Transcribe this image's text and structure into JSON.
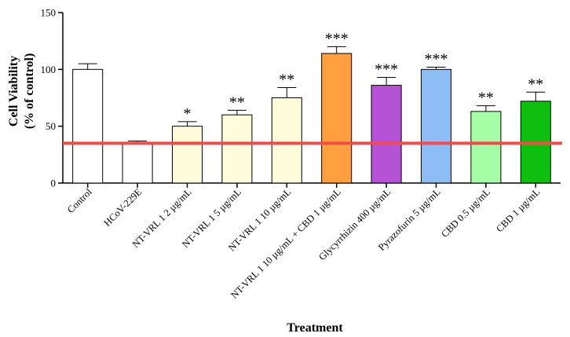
{
  "chart_data": {
    "type": "bar",
    "categories": [
      "Control",
      "HCoV-229E",
      "NT-VRL 1 2 µg/mL",
      "NT-VRL 1 5 µg/mL",
      "NT-VRL 1 10 µg/mL",
      "NT-VRL 1 10 µg/mL + CBD 1 µg/mL",
      "Glycyrrhizin 400 µg/mL",
      "Pyrazofurin 5 µg/mL",
      "CBD 0.5 µg/mL",
      "CBD 1 µg/mL"
    ],
    "values": [
      100,
      35,
      50,
      60,
      75,
      114,
      86,
      100,
      63,
      72
    ],
    "errors": [
      5,
      2,
      4,
      4,
      9,
      6,
      7,
      2,
      5,
      8
    ],
    "significance": [
      "",
      "",
      "*",
      "**",
      "**",
      "***",
      "***",
      "***",
      "**",
      "**"
    ],
    "bar_colors": [
      "#ffffff",
      "#ffffff",
      "#fffbdb",
      "#fffbdb",
      "#fffbdb",
      "#ff9f3f",
      "#b552d6",
      "#8ebcf5",
      "#a6ffa6",
      "#0fbf0f"
    ],
    "reference_line": {
      "value": 35,
      "color": "#f24b4b"
    },
    "yticks": [
      "0",
      "50",
      "100",
      "150"
    ],
    "ylim": [
      0,
      150
    ],
    "ylabel_line1": "Cell Viability",
    "ylabel_line2": "(% of control)",
    "xlabel": "Treatment",
    "legend": "none",
    "grid": false
  }
}
